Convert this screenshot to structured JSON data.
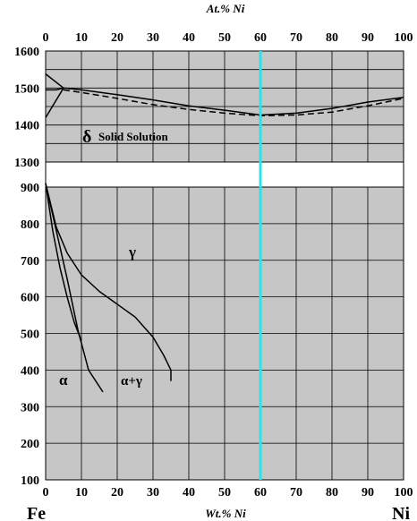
{
  "chart_data": {
    "type": "line",
    "title": "",
    "top_axis_label": "At.% Ni",
    "bottom_axis_label": "Wt.% Ni",
    "left_component": "Fe",
    "right_component": "Ni",
    "x_ticks": [
      "0",
      "10",
      "20",
      "30",
      "40",
      "50",
      "60",
      "70",
      "80",
      "90",
      "100"
    ],
    "xlim": [
      0,
      100
    ],
    "upper_panel": {
      "ylim": [
        1300,
        1600
      ],
      "y_ticks": [
        "1300",
        "1400",
        "1500",
        "1600"
      ]
    },
    "lower_panel": {
      "ylim": [
        100,
        900
      ],
      "y_ticks": [
        "100",
        "200",
        "300",
        "400",
        "500",
        "600",
        "700",
        "800",
        "900"
      ]
    },
    "grid": true,
    "highlight_line": {
      "x": 60,
      "color": "#33e0e6"
    },
    "phase_labels": {
      "delta_symbol": "δ",
      "delta_text": "Solid Solution",
      "gamma": "γ",
      "alpha": "α",
      "alpha_gamma": "α+γ"
    },
    "series": [
      {
        "style": "solid",
        "panel": "upper",
        "x": [
          0,
          5,
          10,
          20,
          30,
          40,
          50,
          60,
          70,
          80,
          90,
          100
        ],
        "y": [
          1538,
          1500,
          1495,
          1482,
          1468,
          1452,
          1440,
          1427,
          1432,
          1445,
          1462,
          1475
        ]
      },
      {
        "style": "dashed",
        "panel": "upper",
        "x": [
          5,
          10,
          20,
          30,
          40,
          50,
          60,
          70,
          80,
          90,
          100
        ],
        "y": [
          1495,
          1488,
          1472,
          1455,
          1442,
          1432,
          1425,
          1427,
          1435,
          1452,
          1472
        ]
      },
      {
        "style": "solid",
        "panel": "upper",
        "x": [
          0,
          5
        ],
        "y": [
          1420,
          1500
        ]
      },
      {
        "style": "solid",
        "panel": "upper",
        "x": [
          0,
          3,
          5
        ],
        "y": [
          1495,
          1495,
          1500
        ]
      },
      {
        "style": "solid",
        "panel": "lower",
        "x": [
          0,
          3,
          6,
          10,
          15,
          20,
          25,
          30,
          33,
          35,
          35
        ],
        "y": [
          910,
          790,
          720,
          660,
          615,
          580,
          545,
          490,
          440,
          400,
          370
        ]
      },
      {
        "style": "solid",
        "panel": "lower",
        "x": [
          0,
          3,
          6,
          9,
          12,
          16
        ],
        "y": [
          910,
          780,
          650,
          510,
          400,
          340
        ]
      },
      {
        "style": "solid",
        "panel": "lower",
        "x": [
          0,
          2,
          4,
          6,
          8,
          10
        ],
        "y": [
          910,
          780,
          680,
          600,
          530,
          480
        ]
      }
    ]
  }
}
